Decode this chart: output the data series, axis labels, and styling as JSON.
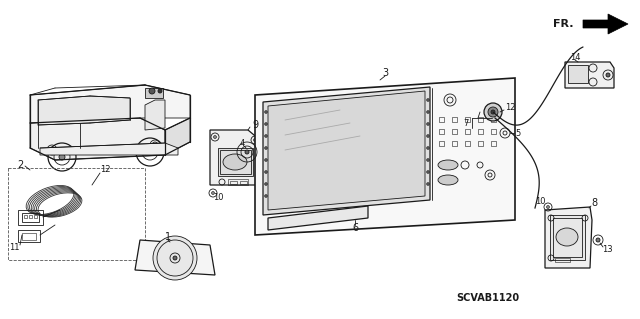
{
  "bg_color": "#ffffff",
  "watermark": "SCVAB1120",
  "fr_label": "FR.",
  "line_color": "#1a1a1a",
  "gray_fill": "#d0d0d0",
  "light_gray": "#e8e8e8"
}
